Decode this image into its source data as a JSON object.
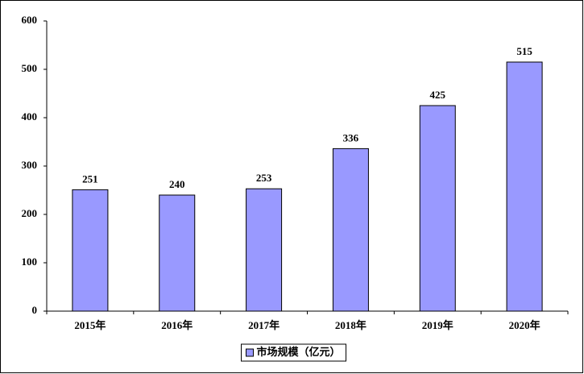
{
  "chart_data": {
    "type": "bar",
    "categories": [
      "2015年",
      "2016年",
      "2017年",
      "2018年",
      "2019年",
      "2020年"
    ],
    "series": [
      {
        "name": "市场规模（亿元）",
        "color": "#9999ff",
        "values": [
          251,
          240,
          253,
          336,
          425,
          515
        ]
      }
    ],
    "ylim": [
      0,
      600
    ],
    "yticks": [
      0,
      100,
      200,
      300,
      400,
      500,
      600
    ],
    "grid": false,
    "legend": "bottom",
    "data_labels": true
  }
}
